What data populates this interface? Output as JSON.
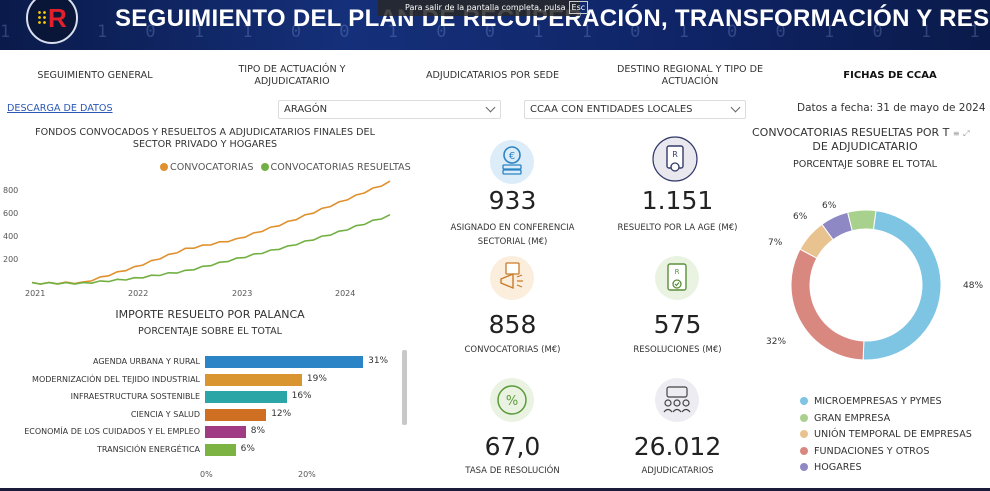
{
  "header": {
    "title": "SEGUIMIENTO DEL PLAN DE RECUPERACIÓN, TRANSFORMACIÓN Y RESILIENCIA",
    "toast_text": "Para salir de la pantalla completa, pulsa",
    "toast_key": "Esc",
    "digits": "1 0 1 0 1 1 0 0 1 0 0 1 1 0 1 0 0 1 0 1 1 0 1 0 0 1 1 0"
  },
  "nav": {
    "items": [
      {
        "label": "SEGUIMIENTO GENERAL"
      },
      {
        "label": "TIPO DE ACTUACIÓN Y ADJUDICATARIO"
      },
      {
        "label": "ADJUDICATARIOS POR SEDE"
      },
      {
        "label": "DESTINO REGIONAL Y TIPO DE ACTUACIÓN"
      },
      {
        "label": "FICHAS DE CCAA"
      }
    ]
  },
  "toolbar": {
    "download_label": "DESCARGA DE DATOS",
    "region_select": "ARAGÓN",
    "entity_select": "CCAA CON ENTIDADES LOCALES",
    "date_label": "Datos a fecha: 31 de mayo de 2024"
  },
  "line_chart": {
    "title": "FONDOS CONVOCADOS Y RESUELTOS A ADJUDICATARIOS FINALES DEL SECTOR PRIVADO Y HOGARES",
    "series_names": [
      "CONVOCATORIAS",
      "CONVOCATORIAS RESUELTAS"
    ],
    "colors": [
      "#e0912f",
      "#72b043"
    ],
    "y_ticks": [
      "800",
      "600",
      "400",
      "200"
    ],
    "x_ticks": [
      "2021",
      "2022",
      "2023",
      "2024"
    ]
  },
  "bar_chart": {
    "title": "IMPORTE RESUELTO POR PALANCA",
    "subtitle": "PORCENTAJE SOBRE EL TOTAL",
    "x_ticks": [
      "0%",
      "20%"
    ],
    "items": [
      {
        "label": "AGENDA URBANA Y RURAL",
        "pct": "31%",
        "color": "#2b84c6"
      },
      {
        "label": "MODERNIZACIÓN DEL TEJIDO INDUSTRIAL",
        "pct": "19%",
        "color": "#d9952f"
      },
      {
        "label": "INFRAESTRUCTURA SOSTENIBLE",
        "pct": "16%",
        "color": "#2ba5a6"
      },
      {
        "label": "CIENCIA Y SALUD",
        "pct": "12%",
        "color": "#cf6f22"
      },
      {
        "label": "ECONOMÍA DE LOS CUIDADOS Y EL EMPLEO",
        "pct": "8%",
        "color": "#a03b83"
      },
      {
        "label": "TRANSICIÓN ENERGÉTICA",
        "pct": "6%",
        "color": "#7cb342"
      }
    ]
  },
  "kpis": [
    {
      "value": "933",
      "label": "ASIGNADO EN CONFERENCIA SECTORIAL (M€)",
      "icon": "coins-icon"
    },
    {
      "value": "1.151",
      "label": "RESUELTO POR LA AGE (M€)",
      "icon": "certificate-icon"
    },
    {
      "value": "858",
      "label": "CONVOCATORIAS (M€)",
      "icon": "megaphone-icon"
    },
    {
      "value": "575",
      "label": "RESOLUCIONES (M€)",
      "icon": "document-check-icon"
    },
    {
      "value": "67,0",
      "label": "TASA DE RESOLUCIÓN",
      "icon": "percent-icon"
    },
    {
      "value": "26.012",
      "label": "ADJUDICATARIOS",
      "icon": "people-icon"
    }
  ],
  "donut": {
    "title": "CONVOCATORIAS RESUELTAS POR TIPO DE ADJUDICATARIO",
    "title_visible": "CONVOCATORIAS RESUELTAS POR T",
    "title_line2": "DE ADJUDICATARIO",
    "subtitle": "PORCENTAJE SOBRE EL TOTAL",
    "labels": [
      "48%",
      "32%",
      "7%",
      "6%",
      "6%"
    ],
    "legend": [
      {
        "label": "MICROEMPRESAS Y PYMES",
        "color": "#7ec4e3"
      },
      {
        "label": "GRAN EMPRESA",
        "color": "#a9d18e"
      },
      {
        "label": "UNIÓN TEMPORAL DE EMPRESAS",
        "color": "#e8c38f"
      },
      {
        "label": "FUNDACIONES Y OTROS",
        "color": "#d98880"
      },
      {
        "label": "HOGARES",
        "color": "#8e88c4"
      }
    ]
  },
  "chart_data": [
    {
      "type": "line",
      "title": "FONDOS CONVOCADOS Y RESUELTOS A ADJUDICATARIOS FINALES DEL SECTOR PRIVADO Y HOGARES",
      "x": [
        "2021-01",
        "2021-07",
        "2022-01",
        "2022-07",
        "2023-01",
        "2023-07",
        "2024-01",
        "2024-05"
      ],
      "series": [
        {
          "name": "CONVOCATORIAS",
          "values": [
            20,
            25,
            150,
            300,
            380,
            520,
            680,
            850
          ]
        },
        {
          "name": "CONVOCATORIAS RESUELTAS",
          "values": [
            20,
            20,
            60,
            120,
            220,
            320,
            440,
            575
          ]
        }
      ],
      "ylim": [
        0,
        900
      ]
    },
    {
      "type": "bar",
      "title": "IMPORTE RESUELTO POR PALANCA",
      "subtitle": "PORCENTAJE SOBRE EL TOTAL",
      "categories": [
        "AGENDA URBANA Y RURAL",
        "MODERNIZACIÓN DEL TEJIDO INDUSTRIAL",
        "INFRAESTRUCTURA SOSTENIBLE",
        "CIENCIA Y SALUD",
        "ECONOMÍA DE LOS CUIDADOS Y EL EMPLEO",
        "TRANSICIÓN ENERGÉTICA"
      ],
      "values": [
        31,
        19,
        16,
        12,
        8,
        6
      ]
    },
    {
      "type": "pie",
      "title": "CONVOCATORIAS RESUELTAS POR TIPO DE ADJUDICATARIO",
      "categories": [
        "MICROEMPRESAS Y PYMES",
        "FUNDACIONES Y OTROS",
        "UNIÓN TEMPORAL DE EMPRESAS",
        "HOGARES",
        "GRAN EMPRESA"
      ],
      "values": [
        48,
        32,
        7,
        6,
        6
      ]
    }
  ]
}
